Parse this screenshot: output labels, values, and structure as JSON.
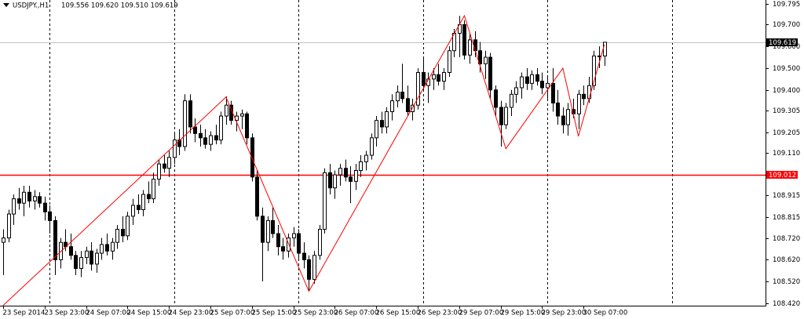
{
  "chart_data": {
    "type": "candlestick",
    "title": "USDJPY.,H1",
    "subtitle": "109.556 109.620 109.510 109.619",
    "categories": [
      "23 Sep 2014",
      null,
      null,
      null,
      null,
      null,
      null,
      null,
      "23 Sep 23:00",
      null,
      null,
      null,
      null,
      null,
      null,
      null,
      "24 Sep 07:00",
      null,
      null,
      null,
      null,
      null,
      null,
      null,
      "24 Sep 15:00",
      null,
      null,
      null,
      null,
      null,
      null,
      null,
      "24 Sep 23:00",
      null,
      null,
      null,
      null,
      null,
      null,
      null,
      "25 Sep 07:00",
      null,
      null,
      null,
      null,
      null,
      null,
      null,
      "25 Sep 15:00",
      null,
      null,
      null,
      null,
      null,
      null,
      null,
      "25 Sep 23:00",
      null,
      null,
      null,
      null,
      null,
      null,
      null,
      "26 Sep 07:00",
      null,
      null,
      null,
      null,
      null,
      null,
      null,
      "26 Sep 15:00",
      null,
      null,
      null,
      null,
      null,
      null,
      null,
      "26 Sep 23:00",
      null,
      null,
      null,
      null,
      null,
      null,
      null,
      "29 Sep 07:00",
      null,
      null,
      null,
      null,
      null,
      null,
      null,
      "29 Sep 15:00",
      null,
      null,
      null,
      null,
      null,
      null,
      null,
      "29 Sep 23:00",
      null,
      null,
      null,
      null,
      null,
      null,
      null,
      "30 Sep 07:00",
      null,
      null,
      null,
      null
    ],
    "candles": [
      [
        108.7,
        108.76,
        108.55,
        108.72
      ],
      [
        108.72,
        108.85,
        108.7,
        108.83
      ],
      [
        108.83,
        108.92,
        108.78,
        108.9
      ],
      [
        108.9,
        108.95,
        108.85,
        108.88
      ],
      [
        108.88,
        108.96,
        108.82,
        108.93
      ],
      [
        108.93,
        108.96,
        108.86,
        108.89
      ],
      [
        108.89,
        108.94,
        108.85,
        108.91
      ],
      [
        108.91,
        108.93,
        108.86,
        108.88
      ],
      [
        108.88,
        108.91,
        108.8,
        108.84
      ],
      [
        108.84,
        108.87,
        108.74,
        108.8
      ],
      [
        108.8,
        108.82,
        108.55,
        108.62
      ],
      [
        108.62,
        108.72,
        108.58,
        108.7
      ],
      [
        108.7,
        108.76,
        108.66,
        108.68
      ],
      [
        108.68,
        108.74,
        108.62,
        108.64
      ],
      [
        108.64,
        108.66,
        108.55,
        108.58
      ],
      [
        108.58,
        108.66,
        108.54,
        108.63
      ],
      [
        108.63,
        108.68,
        108.6,
        108.66
      ],
      [
        108.66,
        108.7,
        108.57,
        108.6
      ],
      [
        108.6,
        108.67,
        108.56,
        108.65
      ],
      [
        108.65,
        108.72,
        108.62,
        108.69
      ],
      [
        108.69,
        108.74,
        108.64,
        108.66
      ],
      [
        108.66,
        108.72,
        108.62,
        108.7
      ],
      [
        108.7,
        108.78,
        108.67,
        108.76
      ],
      [
        108.76,
        108.82,
        108.7,
        108.73
      ],
      [
        108.73,
        108.84,
        108.71,
        108.82
      ],
      [
        108.82,
        108.9,
        108.78,
        108.87
      ],
      [
        108.87,
        108.92,
        108.83,
        108.85
      ],
      [
        108.85,
        108.94,
        108.82,
        108.92
      ],
      [
        108.92,
        108.98,
        108.88,
        108.9
      ],
      [
        108.9,
        109.02,
        108.88,
        108.99
      ],
      [
        108.99,
        109.08,
        108.96,
        109.06
      ],
      [
        109.06,
        109.1,
        109.02,
        109.04
      ],
      [
        109.04,
        109.12,
        109.0,
        109.09
      ],
      [
        109.09,
        109.2,
        109.06,
        109.17
      ],
      [
        109.17,
        109.22,
        109.1,
        109.14
      ],
      [
        109.14,
        109.38,
        109.12,
        109.35
      ],
      [
        109.35,
        109.38,
        109.2,
        109.23
      ],
      [
        109.23,
        109.27,
        109.16,
        109.2
      ],
      [
        109.2,
        109.24,
        109.14,
        109.18
      ],
      [
        109.18,
        109.22,
        109.13,
        109.15
      ],
      [
        109.15,
        109.21,
        109.12,
        109.19
      ],
      [
        109.19,
        109.24,
        109.15,
        109.17
      ],
      [
        109.17,
        109.3,
        109.15,
        109.28
      ],
      [
        109.28,
        109.37,
        109.24,
        109.33
      ],
      [
        109.33,
        109.35,
        109.24,
        109.26
      ],
      [
        109.26,
        109.3,
        109.21,
        109.28
      ],
      [
        109.28,
        109.31,
        109.22,
        109.29
      ],
      [
        109.29,
        109.3,
        109.15,
        109.18
      ],
      [
        109.18,
        109.2,
        108.98,
        109.0
      ],
      [
        109.0,
        109.03,
        108.8,
        108.82
      ],
      [
        108.82,
        108.86,
        108.52,
        108.7
      ],
      [
        108.7,
        108.82,
        108.66,
        108.8
      ],
      [
        108.8,
        108.86,
        108.72,
        108.74
      ],
      [
        108.74,
        108.78,
        108.64,
        108.68
      ],
      [
        108.68,
        108.72,
        108.62,
        108.66
      ],
      [
        108.66,
        108.74,
        108.63,
        108.72
      ],
      [
        108.72,
        108.77,
        108.68,
        108.74
      ],
      [
        108.74,
        108.76,
        108.62,
        108.65
      ],
      [
        108.65,
        108.7,
        108.58,
        108.62
      ],
      [
        108.62,
        108.64,
        108.48,
        108.53
      ],
      [
        108.53,
        108.66,
        108.51,
        108.64
      ],
      [
        108.64,
        108.78,
        108.62,
        108.76
      ],
      [
        108.76,
        109.04,
        108.74,
        109.02
      ],
      [
        109.02,
        109.06,
        108.92,
        108.95
      ],
      [
        108.95,
        109.03,
        108.9,
        109.01
      ],
      [
        109.01,
        109.06,
        108.96,
        109.04
      ],
      [
        109.04,
        109.08,
        108.98,
        109.0
      ],
      [
        109.0,
        109.05,
        108.88,
        108.98
      ],
      [
        108.98,
        109.06,
        108.94,
        109.03
      ],
      [
        109.03,
        109.1,
        109.0,
        109.07
      ],
      [
        109.07,
        109.12,
        109.03,
        109.1
      ],
      [
        109.1,
        109.2,
        109.08,
        109.18
      ],
      [
        109.18,
        109.28,
        109.14,
        109.26
      ],
      [
        109.26,
        109.3,
        109.2,
        109.23
      ],
      [
        109.23,
        109.32,
        109.2,
        109.3
      ],
      [
        109.3,
        109.38,
        109.26,
        109.35
      ],
      [
        109.35,
        109.42,
        109.32,
        109.39
      ],
      [
        109.39,
        109.52,
        109.34,
        109.36
      ],
      [
        109.36,
        109.42,
        109.28,
        109.3
      ],
      [
        109.3,
        109.36,
        109.26,
        109.33
      ],
      [
        109.33,
        109.5,
        109.31,
        109.48
      ],
      [
        109.48,
        109.55,
        109.4,
        109.42
      ],
      [
        109.42,
        109.48,
        109.34,
        109.45
      ],
      [
        109.45,
        109.5,
        109.4,
        109.47
      ],
      [
        109.47,
        109.52,
        109.42,
        109.44
      ],
      [
        109.44,
        109.5,
        109.4,
        109.48
      ],
      [
        109.48,
        109.6,
        109.46,
        109.58
      ],
      [
        109.58,
        109.68,
        109.55,
        109.66
      ],
      [
        109.66,
        109.74,
        109.55,
        109.7
      ],
      [
        109.7,
        109.72,
        109.54,
        109.56
      ],
      [
        109.56,
        109.66,
        109.52,
        109.63
      ],
      [
        109.63,
        109.67,
        109.55,
        109.58
      ],
      [
        109.58,
        109.62,
        109.48,
        109.52
      ],
      [
        109.52,
        109.58,
        109.45,
        109.55
      ],
      [
        109.55,
        109.57,
        109.36,
        109.4
      ],
      [
        109.4,
        109.42,
        109.28,
        109.32
      ],
      [
        109.32,
        109.35,
        109.14,
        109.24
      ],
      [
        109.24,
        109.34,
        109.22,
        109.32
      ],
      [
        109.32,
        109.4,
        109.28,
        109.38
      ],
      [
        109.38,
        109.44,
        109.34,
        109.41
      ],
      [
        109.41,
        109.48,
        109.36,
        109.46
      ],
      [
        109.46,
        109.5,
        109.4,
        109.43
      ],
      [
        109.43,
        109.49,
        109.4,
        109.47
      ],
      [
        109.47,
        109.5,
        109.42,
        109.44
      ],
      [
        109.44,
        109.48,
        109.38,
        109.41
      ],
      [
        109.41,
        109.46,
        109.36,
        109.43
      ],
      [
        109.43,
        109.5,
        109.3,
        109.34
      ],
      [
        109.34,
        109.4,
        109.24,
        109.28
      ],
      [
        109.28,
        109.32,
        109.2,
        109.24
      ],
      [
        109.24,
        109.34,
        109.19,
        109.31
      ],
      [
        109.31,
        109.36,
        109.27,
        109.29
      ],
      [
        109.29,
        109.4,
        109.22,
        109.38
      ],
      [
        109.38,
        109.42,
        109.33,
        109.36
      ],
      [
        109.36,
        109.46,
        109.34,
        109.42
      ],
      [
        109.42,
        109.58,
        109.4,
        109.556
      ],
      [
        109.556,
        109.6,
        109.5,
        109.556
      ],
      [
        109.556,
        109.62,
        109.51,
        109.619
      ]
    ],
    "up_color": "#ffffff",
    "down_color": "#000000",
    "zigzag": {
      "color": "#ff0000",
      "x": [
        0,
        43,
        59,
        89,
        97,
        108,
        111,
        116
      ],
      "values": [
        108.41,
        109.367,
        108.475,
        109.741,
        109.13,
        109.5,
        109.187,
        109.608
      ]
    },
    "hlines": [
      {
        "value": 109.012,
        "color": "#ff0000"
      },
      {
        "value": 109.619,
        "color": "#c0c0c0",
        "box_color": "#000000"
      }
    ],
    "period_separators": [
      9,
      33,
      57,
      81,
      105,
      129
    ],
    "xlim": [
      -0.6,
      147.1
    ],
    "ylim": [
      108.409,
      109.813
    ],
    "yticks": [
      109.795,
      {
        "value": 109.7,
        "label": "109.700"
      },
      {
        "value": 109.6,
        "label": "109.600"
      },
      {
        "value": 109.5,
        "label": "109.500"
      },
      {
        "value": 109.4,
        "label": "109.400"
      },
      109.305,
      109.205,
      {
        "value": 109.11,
        "label": "109.110"
      },
      108.915,
      108.815,
      {
        "value": 108.72,
        "label": "108.720"
      },
      {
        "value": 108.62,
        "label": "108.620"
      },
      {
        "value": 108.52,
        "label": "108.520"
      },
      {
        "value": 108.42,
        "label": "108.420"
      }
    ]
  }
}
